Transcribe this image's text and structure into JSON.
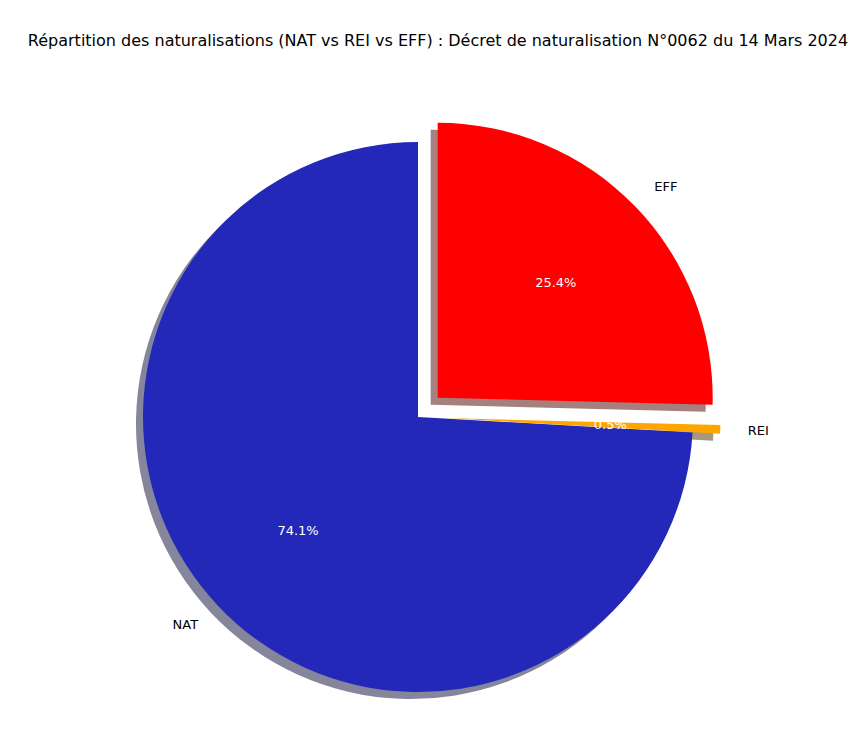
{
  "chart_data": {
    "type": "pie",
    "title": "Répartition des naturalisations (NAT vs REI vs EFF) : Décret de naturalisation N°0062 du 14 Mars 2024",
    "categories": [
      "NAT",
      "REI",
      "EFF"
    ],
    "values": [
      74.1,
      0.5,
      25.4
    ],
    "value_labels": [
      "74.1%",
      "0.5%",
      "25.4%"
    ],
    "colors": [
      "#2428b8",
      "#ffa500",
      "#ff0000"
    ],
    "data_labels": true
  }
}
